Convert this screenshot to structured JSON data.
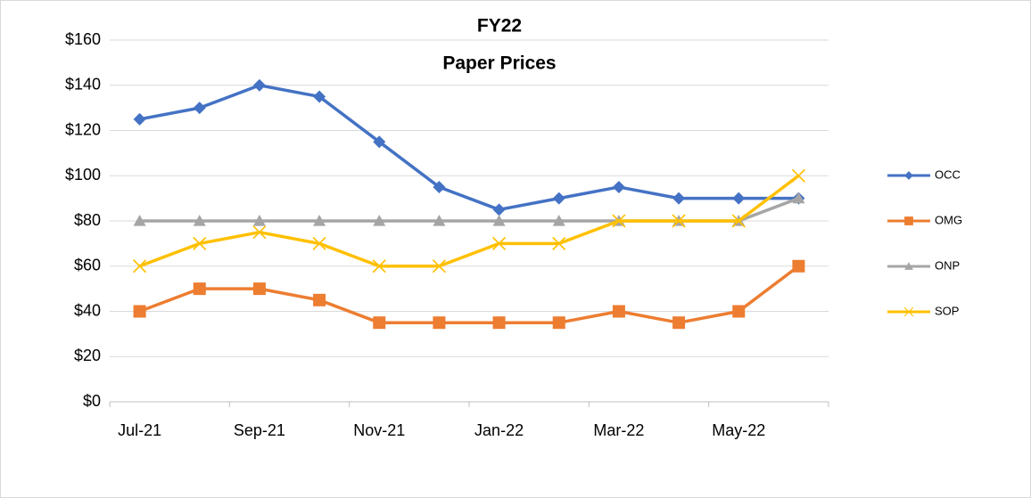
{
  "chart_data": {
    "type": "line",
    "title": "FY22",
    "subtitle": "Paper Prices",
    "categories": [
      "Jul-21",
      null,
      "Sep-21",
      null,
      "Nov-21",
      null,
      "Jan-22",
      null,
      "Mar-22",
      null,
      "May-22",
      null
    ],
    "series": [
      {
        "name": "OCC",
        "color": "#4472c4",
        "marker": "diamond",
        "values": [
          125,
          130,
          140,
          135,
          115,
          95,
          85,
          90,
          95,
          90,
          90,
          90
        ]
      },
      {
        "name": "OMG",
        "color": "#ed7d31",
        "marker": "square",
        "values": [
          40,
          50,
          50,
          45,
          35,
          35,
          35,
          35,
          40,
          35,
          40,
          60
        ]
      },
      {
        "name": "ONP",
        "color": "#a5a5a5",
        "marker": "triangle",
        "values": [
          80,
          80,
          80,
          80,
          80,
          80,
          80,
          80,
          80,
          80,
          80,
          90
        ]
      },
      {
        "name": "SOP",
        "color": "#ffc000",
        "marker": "x",
        "values": [
          60,
          70,
          75,
          70,
          60,
          60,
          70,
          70,
          80,
          80,
          80,
          100
        ]
      }
    ],
    "ylim": [
      0,
      160
    ],
    "yticks": [
      {
        "value": 0,
        "label": "$0"
      },
      {
        "value": 20,
        "label": "$20"
      },
      {
        "value": 40,
        "label": "$40"
      },
      {
        "value": 60,
        "label": "$60"
      },
      {
        "value": 80,
        "label": "$80"
      },
      {
        "value": 100,
        "label": "$100"
      },
      {
        "value": 120,
        "label": "$120"
      },
      {
        "value": 140,
        "label": "$140"
      },
      {
        "value": 160,
        "label": "$160"
      }
    ],
    "grid": true,
    "legend": "right"
  }
}
